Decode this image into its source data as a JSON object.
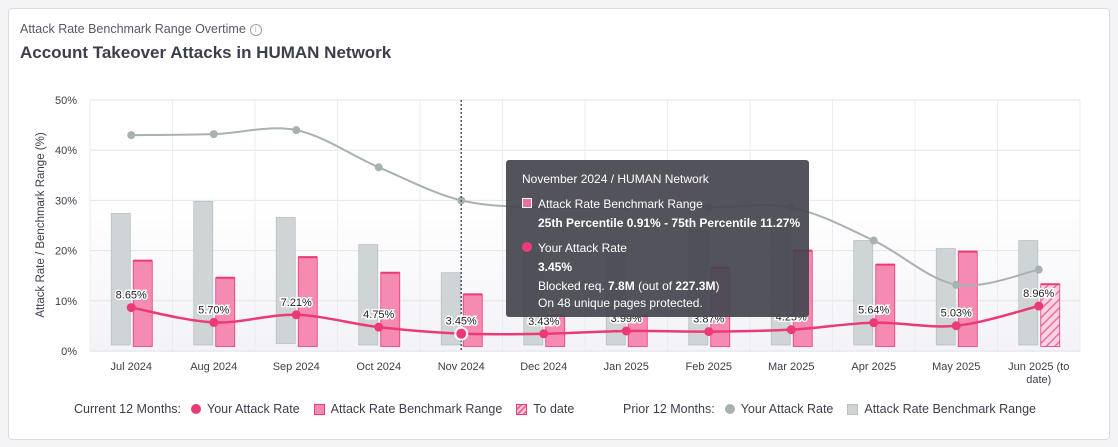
{
  "header": {
    "subtitle": "Attack Rate Benchmark Range Overtime",
    "info_icon": "ⓘ",
    "title": "Account Takeover Attacks in HUMAN Network"
  },
  "colors": {
    "current_line": "#ec3977",
    "current_bar": "#f58ab2",
    "current_bar_border": "#ec3977",
    "prior_line": "#a9b2b2",
    "prior_bar": "#cfd5d6",
    "tooltip_bg": "#464650"
  },
  "chart_data": {
    "type": "bar",
    "ylabel": "Attack Rate / Benchmark Range (%)",
    "ylim": [
      0,
      50
    ],
    "yticks": [
      "0%",
      "10%",
      "20%",
      "30%",
      "40%",
      "50%"
    ],
    "grid": true,
    "categories": [
      "Jul 2024",
      "Aug 2024",
      "Sep 2024",
      "Oct 2024",
      "Nov 2024",
      "Dec 2024",
      "Jan 2025",
      "Feb 2025",
      "Mar 2025",
      "Apr 2025",
      "May 2025",
      "Jun 2025 (to date)"
    ],
    "series": [
      {
        "name": "Your Attack Rate",
        "group": "Current 12 Months",
        "kind": "line",
        "values": [
          8.65,
          5.7,
          7.21,
          4.75,
          3.45,
          3.43,
          3.99,
          3.87,
          4.25,
          5.64,
          5.03,
          8.96
        ],
        "labels": [
          "8.65%",
          "5.70%",
          "7.21%",
          "4.75%",
          "3.45%",
          "3.43%",
          "3.99%",
          "3.87%",
          "4.25%",
          "5.64%",
          "5.03%",
          "8.96%"
        ]
      },
      {
        "name": "Attack Rate Benchmark Range",
        "group": "Current 12 Months",
        "kind": "range",
        "low": [
          0.9,
          0.9,
          0.9,
          0.9,
          0.91,
          0.9,
          0.9,
          0.9,
          0.9,
          0.9,
          0.9,
          0.9
        ],
        "high": [
          18.0,
          14.6,
          18.7,
          15.6,
          11.27,
          7.0,
          7.0,
          16.6,
          20.0,
          17.2,
          19.8,
          13.3
        ],
        "to_date_index": 11
      },
      {
        "name": "Your Attack Rate",
        "group": "Prior 12 Months",
        "kind": "line",
        "values": [
          43.0,
          43.2,
          44.0,
          36.6,
          30.0,
          28.6,
          28.6,
          28.6,
          28.6,
          22.0,
          13.2,
          16.2
        ]
      },
      {
        "name": "Attack Rate Benchmark Range",
        "group": "Prior 12 Months",
        "kind": "range",
        "low": [
          1.2,
          1.2,
          1.5,
          1.2,
          1.2,
          1.2,
          1.2,
          1.2,
          1.2,
          1.2,
          1.2,
          1.2
        ],
        "high": [
          27.4,
          29.8,
          26.6,
          21.2,
          15.6,
          20.0,
          22.0,
          24.0,
          26.0,
          22.0,
          20.4,
          22.0
        ]
      }
    ],
    "hover_index": 4
  },
  "tooltip": {
    "heading": "November 2024 / HUMAN Network",
    "range_label": "Attack Rate Benchmark Range",
    "range_value": "25th Percentile 0.91% - 75th Percentile 11.27%",
    "rate_label": "Your Attack Rate",
    "rate_value": "3.45%",
    "blocked_prefix": "Blocked req. ",
    "blocked_value": "7.8M",
    "blocked_mid": " (out of ",
    "blocked_total": "227.3M",
    "blocked_suffix": ")",
    "pages": "On 48 unique pages protected."
  },
  "legend": {
    "current_label": "Current 12 Months:",
    "current_rate": "Your Attack Rate",
    "current_range": "Attack Rate Benchmark Range",
    "to_date": "To date",
    "prior_label": "Prior 12 Months:",
    "prior_rate": "Your Attack Rate",
    "prior_range": "Attack Rate Benchmark Range"
  }
}
